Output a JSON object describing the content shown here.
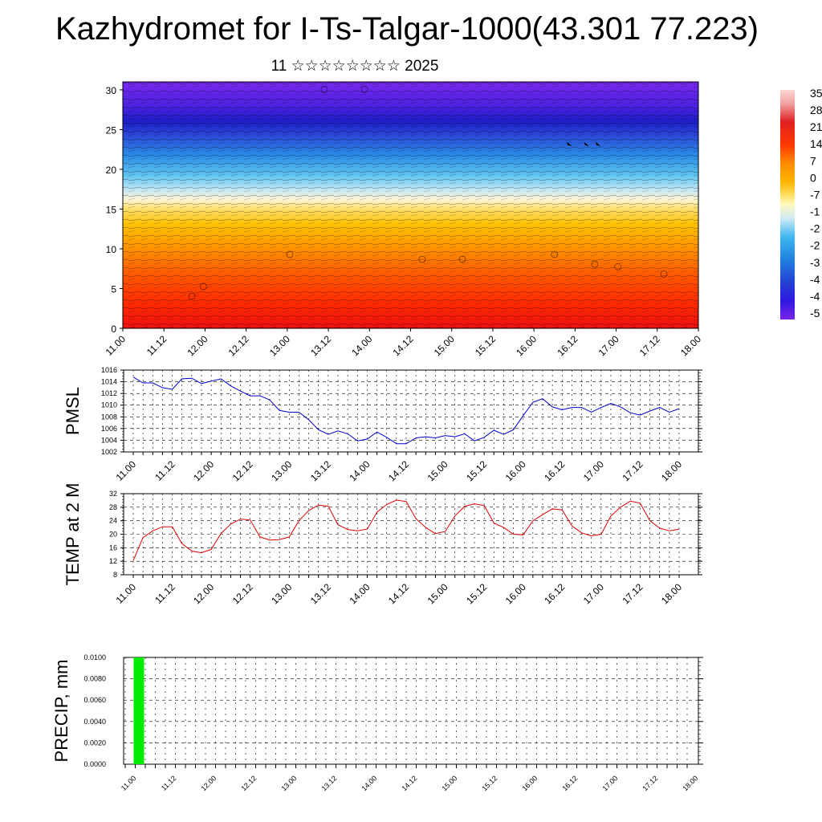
{
  "page": {
    "title": "Kazhydromet for I-Ts-Talgar-1000(43.301 77.223)",
    "subtitle": "11 ☆☆☆☆☆☆☆☆ 2025"
  },
  "colors": {
    "pmsl_line": "#0000cc",
    "temp_line": "#dd0000",
    "precip_bar": "#00ee00",
    "grid": "#000000",
    "colorbar": [
      "#ffd6d6",
      "#f0a0a0",
      "#e02020",
      "#ff4400",
      "#ff8c00",
      "#ffb000",
      "#ffe066",
      "#fff8c0",
      "#d0ecf5",
      "#40b8f0",
      "#2080e0",
      "#2040d0",
      "#3018e0",
      "#7020e8"
    ]
  },
  "chart_data": [
    {
      "type": "heatmap",
      "name": "cross-section",
      "ylim": [
        0,
        31
      ],
      "yticks": [
        0,
        5,
        10,
        15,
        20,
        25,
        30
      ],
      "xticks": [
        "11.00",
        "11.12",
        "12.00",
        "12.12",
        "13.00",
        "13.12",
        "14.00",
        "14.12",
        "15.00",
        "15.12",
        "16.00",
        "16.12",
        "17.00",
        "17.12",
        "18.00"
      ],
      "colorbar_labels": [
        "35",
        "28",
        "21",
        "14",
        "7",
        "0",
        "-7",
        "-1",
        "-2",
        "-2",
        "-3",
        "-4",
        "-4",
        "-5"
      ]
    },
    {
      "type": "line",
      "ylabel": "PMSL",
      "ylim": [
        1002,
        1016
      ],
      "yticks": [
        1002,
        1004,
        1006,
        1008,
        1010,
        1012,
        1014,
        1016
      ],
      "xticks": [
        "11.00",
        "11.12",
        "12.00",
        "12.12",
        "13.00",
        "13.12",
        "14.00",
        "14.12",
        "15.00",
        "15.12",
        "16.00",
        "16.12",
        "17.00",
        "17.12",
        "18.00"
      ],
      "x_step_hours": 3,
      "values": [
        1014.8,
        1013.8,
        1013.8,
        1013.0,
        1012.7,
        1014.5,
        1014.6,
        1013.7,
        1014.1,
        1014.5,
        1013.3,
        1012.4,
        1011.6,
        1011.6,
        1010.9,
        1009.1,
        1008.8,
        1008.8,
        1007.5,
        1005.8,
        1005.0,
        1005.6,
        1005.1,
        1003.9,
        1004.2,
        1005.4,
        1004.5,
        1003.4,
        1003.4,
        1004.4,
        1004.6,
        1004.4,
        1004.8,
        1004.6,
        1005.1,
        1003.9,
        1004.5,
        1005.7,
        1005.0,
        1005.8,
        1008.2,
        1010.5,
        1011.1,
        1009.7,
        1009.2,
        1009.6,
        1009.6,
        1008.8,
        1009.6,
        1010.3,
        1009.7,
        1008.7,
        1008.3,
        1009.0,
        1009.6,
        1008.8,
        1009.4
      ]
    },
    {
      "type": "line",
      "ylabel": "TEMP at 2 M",
      "ylim": [
        8,
        32
      ],
      "yticks": [
        8,
        12,
        16,
        20,
        24,
        28,
        32
      ],
      "xticks": [
        "11.00",
        "11.12",
        "12.00",
        "12.12",
        "13.00",
        "13.12",
        "14.00",
        "14.12",
        "15.00",
        "15.12",
        "16.00",
        "16.12",
        "17.00",
        "17.12",
        "18.00"
      ],
      "x_step_hours": 3,
      "values": [
        12.2,
        19.0,
        21.0,
        22.2,
        22.2,
        17.2,
        15.0,
        14.5,
        15.5,
        20.2,
        23.0,
        24.5,
        24.2,
        19.2,
        18.3,
        18.4,
        19.2,
        24.0,
        27.0,
        28.6,
        28.3,
        22.8,
        21.4,
        21.0,
        21.5,
        26.5,
        28.8,
        30.1,
        29.7,
        24.6,
        22.0,
        20.2,
        20.8,
        25.4,
        28.3,
        29.0,
        28.5,
        23.3,
        22.0,
        20.0,
        19.8,
        24.0,
        25.8,
        27.5,
        27.2,
        22.5,
        20.4,
        19.5,
        20.0,
        25.4,
        28.0,
        29.8,
        29.2,
        24.0,
        21.8,
        21.0,
        21.5
      ]
    },
    {
      "type": "bar",
      "ylabel": "PRECIP, mm",
      "ylim": [
        0,
        0.01
      ],
      "yticks": [
        "0.0000",
        "0.0020",
        "0.0040",
        "0.0060",
        "0.0080",
        "0.0100"
      ],
      "xticks": [
        "11.00",
        "11.12",
        "12.00",
        "12.12",
        "13.00",
        "13.12",
        "14.00",
        "14.12",
        "15.00",
        "15.12",
        "16.00",
        "16.12",
        "17.00",
        "17.12",
        "18.00"
      ],
      "bars": [
        {
          "hour": 9,
          "value": 0.01
        }
      ]
    }
  ]
}
